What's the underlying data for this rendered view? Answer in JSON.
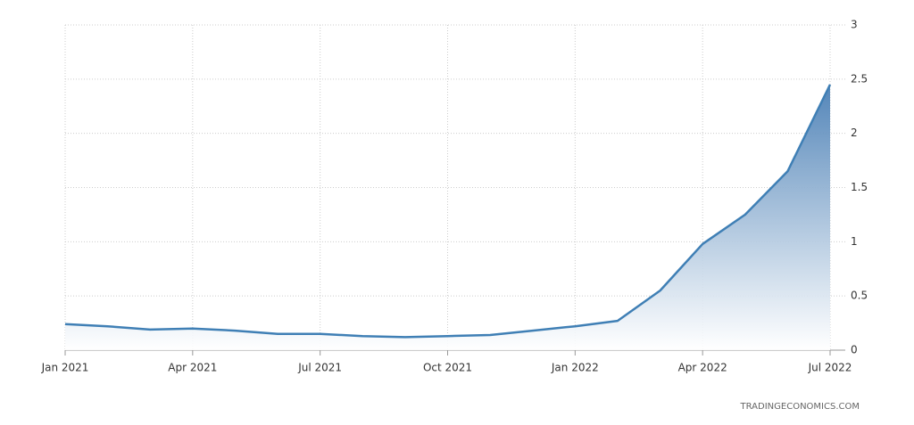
{
  "chart_data": {
    "type": "area",
    "x": [
      "2021-01",
      "2021-02",
      "2021-03",
      "2021-04",
      "2021-05",
      "2021-06",
      "2021-07",
      "2021-08",
      "2021-09",
      "2021-10",
      "2021-11",
      "2021-12",
      "2022-01",
      "2022-02",
      "2022-03",
      "2022-04",
      "2022-05",
      "2022-06",
      "2022-07"
    ],
    "values": [
      0.24,
      0.22,
      0.19,
      0.2,
      0.18,
      0.15,
      0.15,
      0.13,
      0.12,
      0.13,
      0.14,
      0.18,
      0.22,
      0.27,
      0.55,
      0.98,
      1.25,
      1.65,
      2.45
    ],
    "color": "#3f7fb5",
    "xlim": [
      "2021-01",
      "2022-07"
    ],
    "xticks": [
      {
        "value": "2021-01",
        "label": "Jan 2021"
      },
      {
        "value": "2021-04",
        "label": "Apr 2021"
      },
      {
        "value": "2021-07",
        "label": "Jul 2021"
      },
      {
        "value": "2021-10",
        "label": "Oct 2021"
      },
      {
        "value": "2022-01",
        "label": "Jan 2022"
      },
      {
        "value": "2022-04",
        "label": "Apr 2022"
      },
      {
        "value": "2022-07",
        "label": "Jul 2022"
      }
    ],
    "ylim": [
      0,
      3
    ],
    "yticks": [
      0,
      0.5,
      1,
      1.5,
      2,
      2.5,
      3
    ],
    "grid": true,
    "source": "TRADINGECONOMICS.COM"
  }
}
